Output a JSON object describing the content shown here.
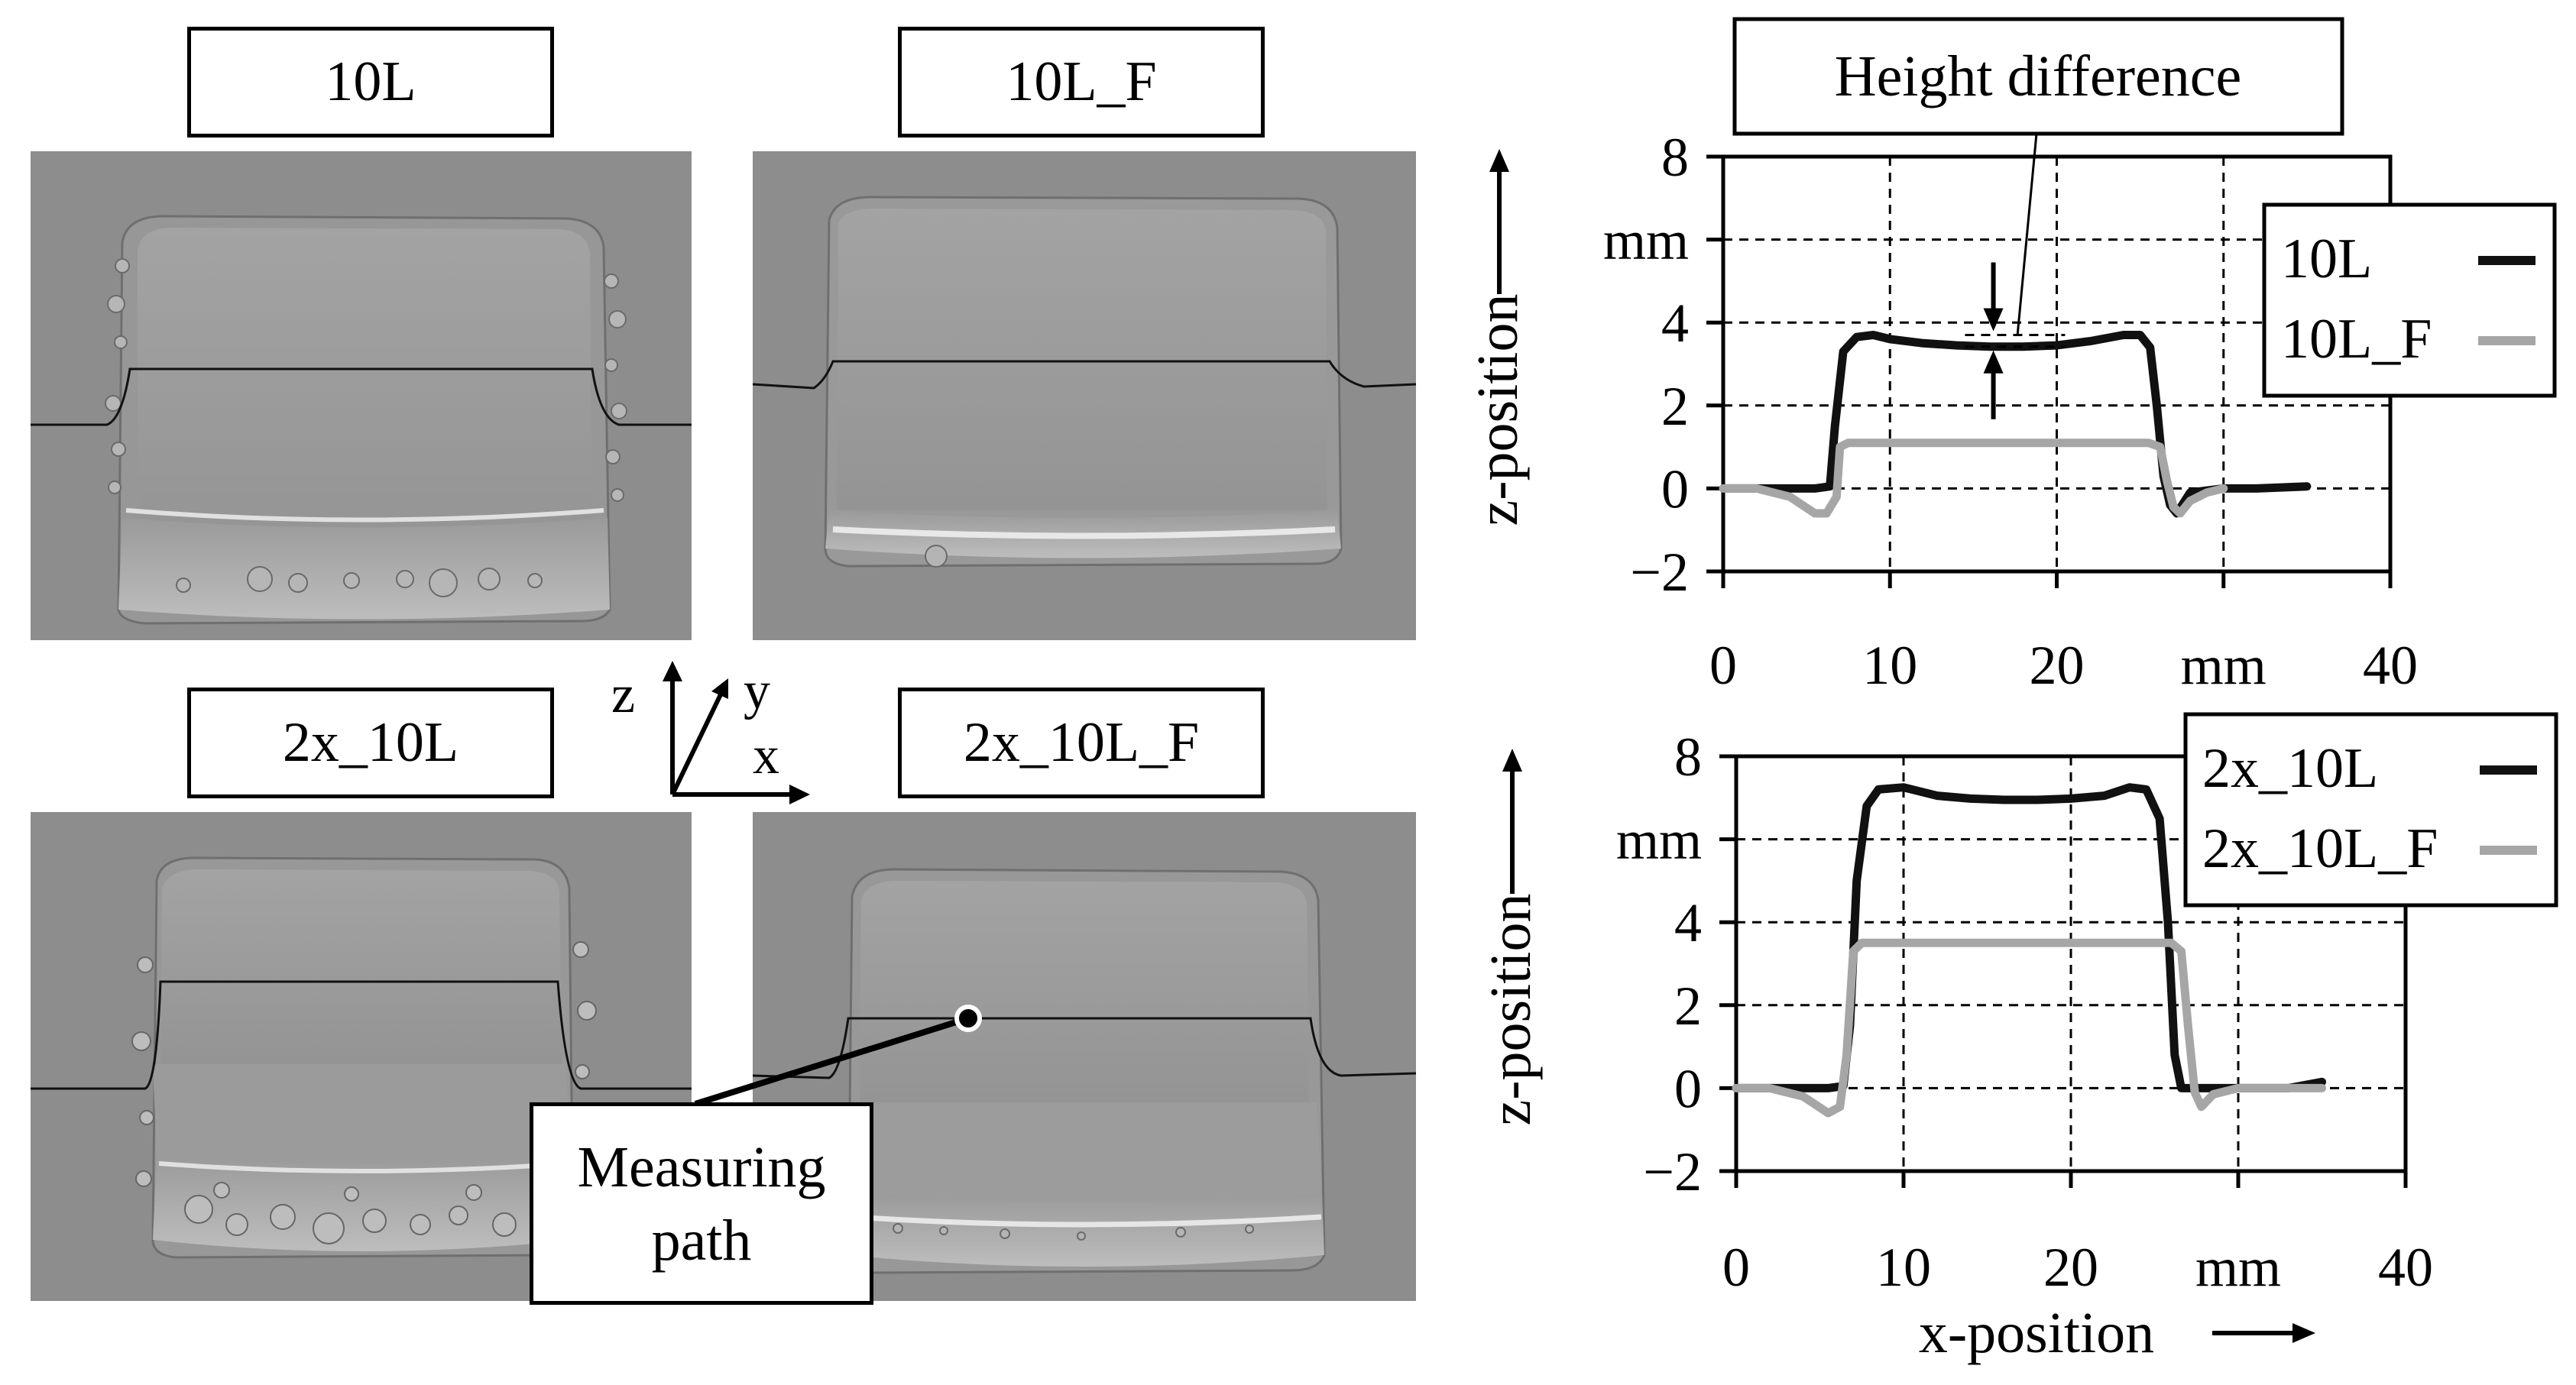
{
  "panels": {
    "top_left": {
      "label": "10L"
    },
    "top_right": {
      "label": "10L_F"
    },
    "bottom_left": {
      "label": "2x_10L"
    },
    "bottom_right": {
      "label": "2x_10L_F"
    }
  },
  "axes_indicator": {
    "z": "z",
    "y": "y",
    "x": "x"
  },
  "annotation": {
    "line1": "Measuring",
    "line2": "path"
  },
  "chart_data": [
    {
      "type": "line",
      "annotation": "Height difference",
      "xlabel": "",
      "ylabel": "z-position",
      "y_unit": "mm",
      "x_unit": "mm",
      "xlim": [
        0,
        40
      ],
      "ylim": [
        -2,
        8
      ],
      "x_ticks": [
        "0",
        "10",
        "20",
        "40"
      ],
      "y_ticks": [
        "8",
        "4",
        "2",
        "0",
        "−2"
      ],
      "grid": true,
      "legend": "top-right",
      "series": [
        {
          "name": "10L",
          "color": "#111111",
          "x": [
            0,
            3,
            5.5,
            6.4,
            6.7,
            7.2,
            8,
            9,
            10,
            12,
            14,
            16,
            18,
            20,
            22,
            24,
            25,
            25.6,
            26,
            26.4,
            26.8,
            27.2,
            28,
            30,
            32,
            35
          ],
          "y": [
            0,
            0,
            0,
            0.05,
            1.5,
            3.3,
            3.65,
            3.7,
            3.6,
            3.5,
            3.45,
            3.42,
            3.42,
            3.45,
            3.55,
            3.7,
            3.7,
            3.4,
            2.0,
            0.3,
            -0.4,
            -0.6,
            -0.1,
            0,
            0,
            0.05
          ]
        },
        {
          "name": "10L_F",
          "color": "#a6a6a6",
          "x": [
            0,
            2,
            4,
            5.5,
            6.2,
            6.8,
            7.0,
            7.5,
            9,
            12,
            15,
            18,
            21,
            24,
            25.5,
            26.2,
            26.6,
            27.0,
            27.4,
            28,
            29,
            30
          ],
          "y": [
            0,
            0,
            -0.2,
            -0.6,
            -0.6,
            -0.2,
            1.0,
            1.1,
            1.1,
            1.1,
            1.1,
            1.1,
            1.1,
            1.1,
            1.1,
            1.0,
            0.2,
            -0.45,
            -0.6,
            -0.3,
            -0.1,
            0
          ]
        }
      ]
    },
    {
      "type": "line",
      "xlabel": "x-position",
      "ylabel": "z-position",
      "y_unit": "mm",
      "x_unit": "mm",
      "xlim": [
        0,
        40
      ],
      "ylim": [
        -2,
        8
      ],
      "x_ticks": [
        "0",
        "10",
        "20",
        "40"
      ],
      "y_ticks": [
        "8",
        "4",
        "2",
        "0",
        "−2"
      ],
      "grid": true,
      "legend": "top-right",
      "series": [
        {
          "name": "2x_10L",
          "color": "#111111",
          "x": [
            0,
            3,
            5.5,
            6.4,
            6.8,
            7.2,
            7.8,
            8.5,
            10,
            12,
            14,
            16,
            18,
            20,
            22,
            23.5,
            24.5,
            25.3,
            25.8,
            26.2,
            26.6,
            27,
            28,
            30,
            33,
            35
          ],
          "y": [
            0,
            0,
            0,
            0.05,
            1.5,
            5.0,
            6.8,
            7.2,
            7.25,
            7.05,
            6.98,
            6.95,
            6.95,
            6.98,
            7.05,
            7.25,
            7.2,
            6.5,
            4.0,
            0.8,
            0,
            0,
            0,
            0,
            0,
            0.15
          ]
        },
        {
          "name": "2x_10L_F",
          "color": "#a6a6a6",
          "x": [
            0,
            2,
            4,
            5.5,
            6.2,
            6.6,
            7.0,
            7.5,
            9,
            12,
            15,
            18,
            21,
            24,
            26.0,
            26.6,
            27.0,
            27.4,
            27.8,
            28.5,
            30,
            33,
            35
          ],
          "y": [
            0,
            0,
            -0.2,
            -0.6,
            -0.45,
            0.8,
            3.3,
            3.5,
            3.5,
            3.5,
            3.5,
            3.5,
            3.5,
            3.5,
            3.5,
            3.3,
            1.5,
            -0.1,
            -0.45,
            -0.15,
            0,
            0,
            0
          ]
        }
      ]
    }
  ]
}
